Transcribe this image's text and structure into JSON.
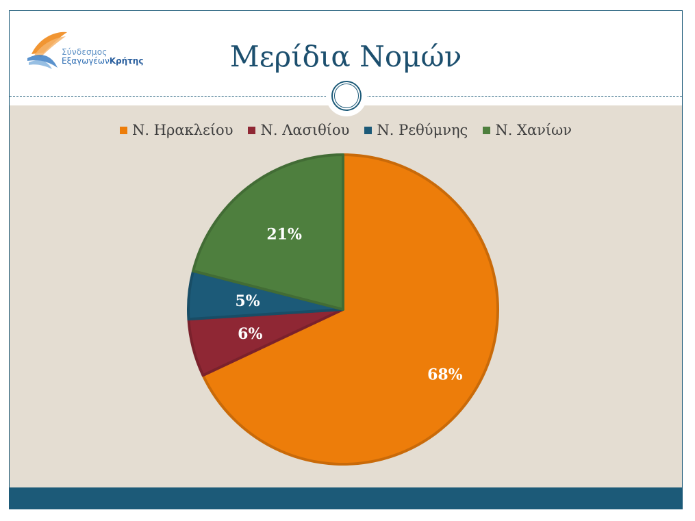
{
  "slide": {
    "title": "Μερίδια Νομών",
    "logo": {
      "line1": "Σύνδεσμος",
      "line2_a": "Εξαγωγέων",
      "line2_b": "Κρήτης"
    }
  },
  "colors": {
    "heraklion": "#ed7d0a",
    "lasithi": "#8f2734",
    "rethymno": "#1c5a78",
    "chania": "#4e7f3e",
    "accent": "#1c5a78",
    "background": "#e4ddd2"
  },
  "chart_data": {
    "type": "pie",
    "title": "",
    "legend_position": "top",
    "series": [
      {
        "name": "Ν. Ηρακλείου",
        "value": 68,
        "label": "68%",
        "color": "#ed7d0a"
      },
      {
        "name": "Ν. Λασιθίου",
        "value": 6,
        "label": "6%",
        "color": "#8f2734"
      },
      {
        "name": "Ν. Ρεθύμνης",
        "value": 5,
        "label": "5%",
        "color": "#1c5a78"
      },
      {
        "name": "Ν. Χανίων",
        "value": 21,
        "label": "21%",
        "color": "#4e7f3e"
      }
    ]
  }
}
